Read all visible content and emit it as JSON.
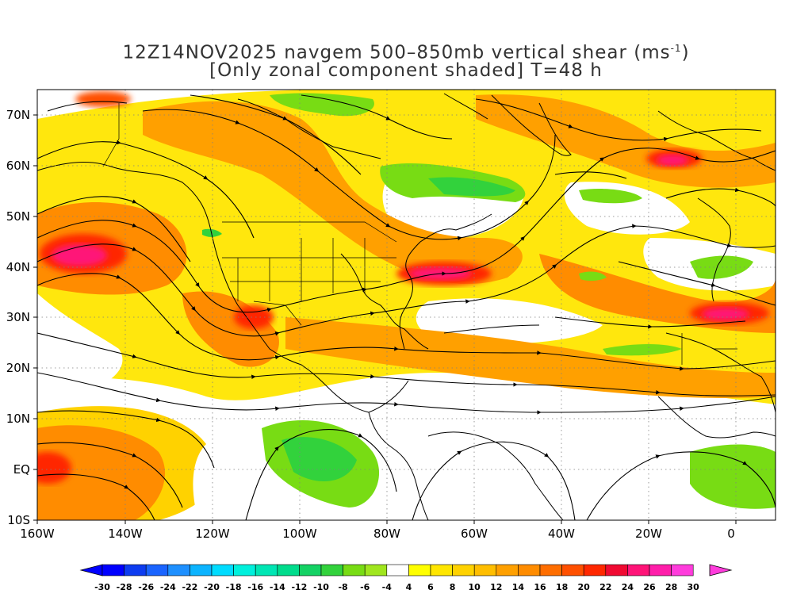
{
  "title": {
    "line1_prefix": "12Z14NOV2025 navgem 500–850mb vertical shear (ms",
    "line1_sup": "-1",
    "line1_suffix": ")",
    "line2": "[Only zonal component shaded] T=48 h"
  },
  "map": {
    "region": "Atlantic / North America",
    "lon_range": [
      -160,
      10
    ],
    "lat_range": [
      -10,
      75
    ],
    "lon_labels": [
      "160W",
      "140W",
      "120W",
      "100W",
      "80W",
      "60W",
      "40W",
      "20W",
      "0"
    ],
    "lat_labels": [
      "70N",
      "60N",
      "50N",
      "40N",
      "30N",
      "20N",
      "10N",
      "EQ",
      "10S"
    ],
    "grid": true,
    "streamlines": true
  },
  "colorbar": {
    "labels": [
      "-30",
      "-28",
      "-26",
      "-24",
      "-22",
      "-20",
      "-18",
      "-16",
      "-14",
      "-12",
      "-10",
      "-8",
      "-6",
      "-4",
      "4",
      "6",
      "8",
      "10",
      "12",
      "14",
      "16",
      "18",
      "20",
      "22",
      "24",
      "26",
      "28",
      "30"
    ],
    "colors": [
      "#0000ff",
      "#0d3cf0",
      "#1a64ff",
      "#1e90ff",
      "#0cb4ff",
      "#00dcff",
      "#00f0dc",
      "#00e6b4",
      "#00dc8c",
      "#14d264",
      "#32d23c",
      "#78dc14",
      "#a0e61e",
      "#ffffff",
      "#ffff00",
      "#ffe600",
      "#ffd200",
      "#ffbe00",
      "#ffa000",
      "#ff8c00",
      "#ff6e00",
      "#ff5000",
      "#ff2800",
      "#f00a32",
      "#ff1478",
      "#ff1eaa",
      "#ff3cdc"
    ],
    "min_color": "#0000ff",
    "max_color": "#ff3cdc"
  }
}
